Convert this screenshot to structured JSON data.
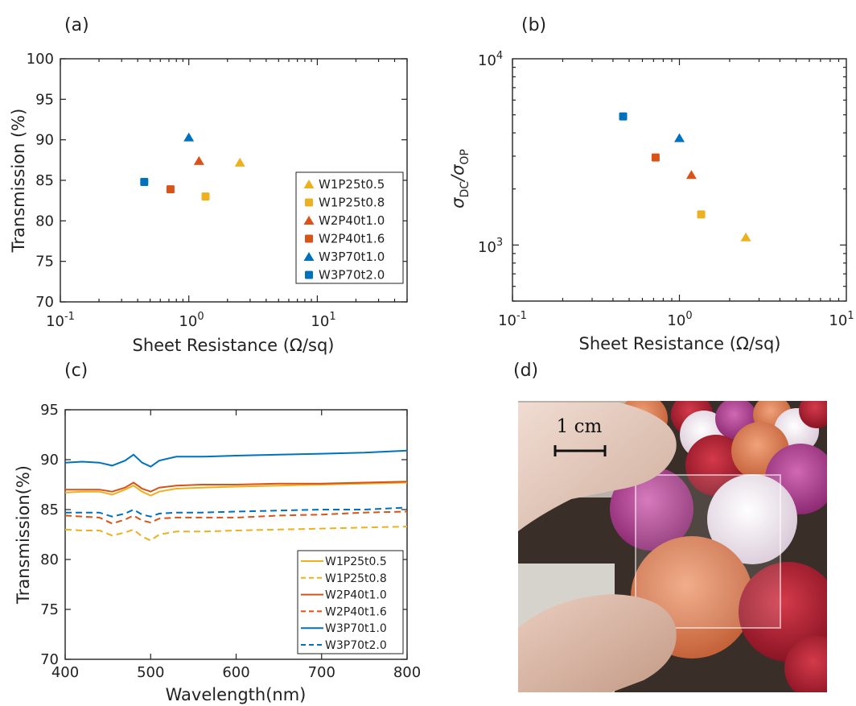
{
  "panel_labels": [
    "(a)",
    "(b)",
    "(c)",
    "(d)"
  ],
  "colors": {
    "W1": "#EDB120",
    "W2": "#D95319",
    "W3": "#0072BD",
    "axis": "#222222"
  },
  "chart_data": [
    {
      "type": "scatter",
      "panel": "(a)",
      "xlabel": "Sheet Resistance (Ω/sq)",
      "ylabel": "Transmission (%)",
      "xscale": "log",
      "xlim": [
        0.1,
        50
      ],
      "ylim": [
        70,
        100
      ],
      "yticks": [
        "70",
        "75",
        "80",
        "85",
        "90",
        "95",
        "100"
      ],
      "legend_position": "lower-right",
      "series": [
        {
          "name": "W1P25t0.5",
          "marker": "triangle",
          "color": "#EDB120",
          "x": [
            2.5
          ],
          "y": [
            87.2
          ]
        },
        {
          "name": "W1P25t0.8",
          "marker": "square",
          "color": "#EDB120",
          "x": [
            1.35
          ],
          "y": [
            83.0
          ]
        },
        {
          "name": "W2P40t1.0",
          "marker": "triangle",
          "color": "#D95319",
          "x": [
            1.2
          ],
          "y": [
            87.4
          ]
        },
        {
          "name": "W2P40t1.6",
          "marker": "square",
          "color": "#D95319",
          "x": [
            0.72
          ],
          "y": [
            83.9
          ]
        },
        {
          "name": "W3P70t1.0",
          "marker": "triangle",
          "color": "#0072BD",
          "x": [
            1.0
          ],
          "y": [
            90.3
          ]
        },
        {
          "name": "W3P70t2.0",
          "marker": "square",
          "color": "#0072BD",
          "x": [
            0.45
          ],
          "y": [
            84.8
          ]
        }
      ]
    },
    {
      "type": "scatter",
      "panel": "(b)",
      "xlabel": "Sheet Resistance (Ω/sq)",
      "ylabel": "σDC/σOP",
      "xscale": "log",
      "yscale": "log",
      "xlim": [
        0.1,
        10
      ],
      "ylim": [
        500,
        10000
      ],
      "points": [
        {
          "series": "W1P25t0.5",
          "marker": "triangle",
          "color": "#EDB120",
          "x": 2.5,
          "y": 1100
        },
        {
          "series": "W1P25t0.8",
          "marker": "square",
          "color": "#EDB120",
          "x": 1.35,
          "y": 1460
        },
        {
          "series": "W2P40t1.0",
          "marker": "triangle",
          "color": "#D95319",
          "x": 1.18,
          "y": 2380
        },
        {
          "series": "W2P40t1.6",
          "marker": "square",
          "color": "#D95319",
          "x": 0.72,
          "y": 2950
        },
        {
          "series": "W3P70t1.0",
          "marker": "triangle",
          "color": "#0072BD",
          "x": 1.0,
          "y": 3750
        },
        {
          "series": "W3P70t2.0",
          "marker": "square",
          "color": "#0072BD",
          "x": 0.46,
          "y": 4900
        }
      ]
    },
    {
      "type": "line",
      "panel": "(c)",
      "xlabel": "Wavelength(nm)",
      "ylabel": "Transmission(%)",
      "xlim": [
        400,
        800
      ],
      "ylim": [
        70,
        95
      ],
      "xticks": [
        "400",
        "500",
        "600",
        "700",
        "800"
      ],
      "yticks": [
        "70",
        "75",
        "80",
        "85",
        "90",
        "95"
      ],
      "legend_position": "lower-right",
      "x": [
        400,
        420,
        440,
        455,
        470,
        480,
        490,
        500,
        510,
        530,
        560,
        600,
        650,
        700,
        750,
        800
      ],
      "series": [
        {
          "name": "W1P25t0.5",
          "style": "solid",
          "color": "#EDB120",
          "values": [
            86.7,
            86.8,
            86.8,
            86.5,
            87.0,
            87.4,
            86.8,
            86.4,
            86.8,
            87.1,
            87.2,
            87.3,
            87.4,
            87.5,
            87.6,
            87.7
          ]
        },
        {
          "name": "W1P25t0.8",
          "style": "dashed",
          "color": "#EDB120",
          "values": [
            83.0,
            82.9,
            82.9,
            82.4,
            82.7,
            83.0,
            82.3,
            81.9,
            82.5,
            82.8,
            82.8,
            82.9,
            83.0,
            83.1,
            83.2,
            83.3
          ]
        },
        {
          "name": "W2P40t1.0",
          "style": "solid",
          "color": "#D95319",
          "values": [
            87.0,
            87.0,
            87.0,
            86.8,
            87.2,
            87.7,
            87.1,
            86.8,
            87.2,
            87.4,
            87.5,
            87.5,
            87.6,
            87.6,
            87.7,
            87.8
          ]
        },
        {
          "name": "W2P40t1.6",
          "style": "dashed",
          "color": "#D95319",
          "values": [
            84.4,
            84.3,
            84.2,
            83.6,
            84.0,
            84.4,
            83.9,
            83.7,
            84.1,
            84.2,
            84.2,
            84.2,
            84.4,
            84.5,
            84.7,
            84.8
          ]
        },
        {
          "name": "W3P70t1.0",
          "style": "solid",
          "color": "#0072BD",
          "values": [
            89.7,
            89.8,
            89.7,
            89.4,
            89.9,
            90.5,
            89.7,
            89.3,
            89.9,
            90.3,
            90.3,
            90.4,
            90.5,
            90.6,
            90.7,
            90.9
          ]
        },
        {
          "name": "W3P70t2.0",
          "style": "dashed",
          "color": "#0072BD",
          "values": [
            84.7,
            84.7,
            84.7,
            84.3,
            84.6,
            85.0,
            84.5,
            84.3,
            84.6,
            84.7,
            84.7,
            84.8,
            84.9,
            85.0,
            85.0,
            85.2
          ]
        }
      ]
    }
  ],
  "photo": {
    "scale_bar_label": "1 cm"
  }
}
